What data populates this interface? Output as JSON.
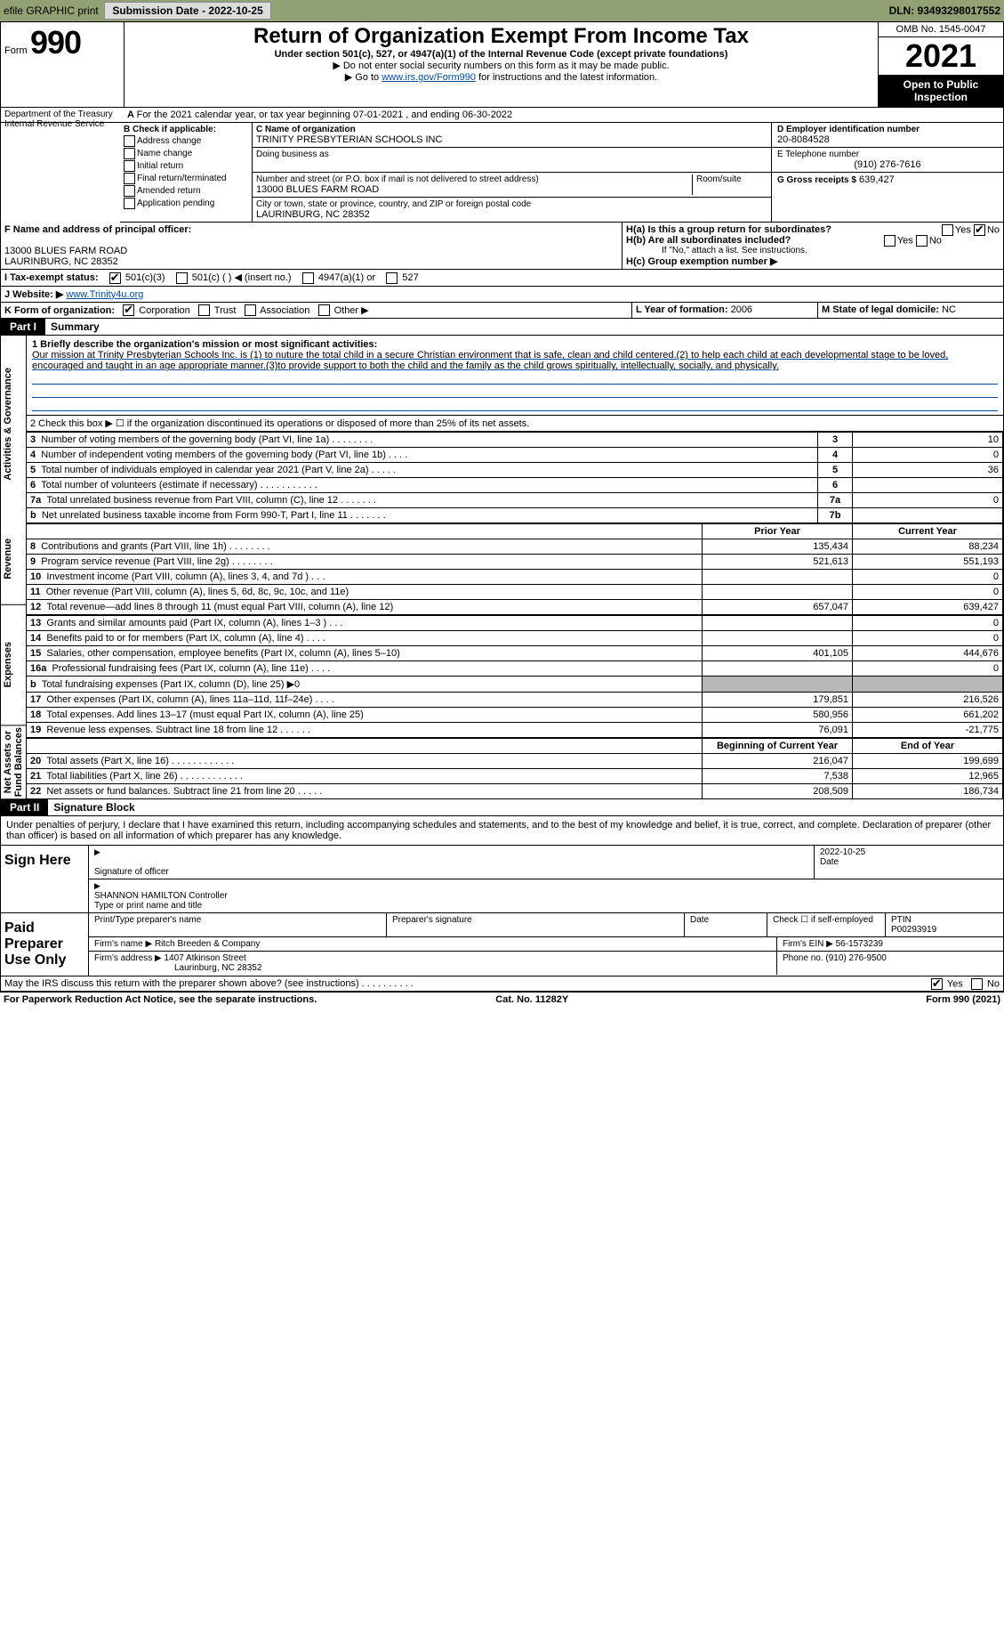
{
  "topbar": {
    "efile": "efile GRAPHIC print",
    "submission_btn": "Submission Date - 2022-10-25",
    "dln": "DLN: 93493298017552"
  },
  "header": {
    "form_word": "Form",
    "form_num": "990",
    "title": "Return of Organization Exempt From Income Tax",
    "subtitle": "Under section 501(c), 527, or 4947(a)(1) of the Internal Revenue Code (except private foundations)",
    "note1": "▶ Do not enter social security numbers on this form as it may be made public.",
    "note2_pre": "▶ Go to ",
    "note2_link": "www.irs.gov/Form990",
    "note2_post": " for instructions and the latest information.",
    "omb": "OMB No. 1545-0047",
    "year": "2021",
    "open": "Open to Public Inspection",
    "dept": "Department of the Treasury Internal Revenue Service"
  },
  "rowA": "For the 2021 calendar year, or tax year beginning 07-01-2021    , and ending 06-30-2022",
  "boxB": {
    "heading": "B Check if applicable:",
    "opts": [
      "Address change",
      "Name change",
      "Initial return",
      "Final return/terminated",
      "Amended return",
      "Application pending"
    ]
  },
  "boxC": {
    "label_name": "C Name of organization",
    "name": "TRINITY PRESBYTERIAN SCHOOLS INC",
    "dba_label": "Doing business as",
    "addr_label": "Number and street (or P.O. box if mail is not delivered to street address)",
    "room_label": "Room/suite",
    "addr": "13000 BLUES FARM ROAD",
    "city_label": "City or town, state or province, country, and ZIP or foreign postal code",
    "city": "LAURINBURG, NC  28352"
  },
  "boxD": {
    "label": "D Employer identification number",
    "value": "20-8084528"
  },
  "boxE": {
    "label": "E Telephone number",
    "value": "(910) 276-7616"
  },
  "boxG": {
    "label": "G Gross receipts $",
    "value": "639,427"
  },
  "boxF": {
    "label": "F  Name and address of principal officer:",
    "line1": "13000 BLUES FARM ROAD",
    "line2": "LAURINBURG, NC  28352"
  },
  "boxH": {
    "a": "H(a)  Is this a group return for subordinates?",
    "b": "H(b)  Are all subordinates included?",
    "b_note": "If \"No,\" attach a list. See instructions.",
    "c": "H(c)  Group exemption number ▶",
    "yes": "Yes",
    "no": "No"
  },
  "rowI": {
    "label": "I   Tax-exempt status:",
    "opts": [
      "501(c)(3)",
      "501(c) (  ) ◀ (insert no.)",
      "4947(a)(1) or",
      "527"
    ]
  },
  "rowJ": {
    "label": "J   Website: ▶",
    "value": "www.Trinity4u.org"
  },
  "rowK": {
    "label": "K Form of organization:",
    "opts": [
      "Corporation",
      "Trust",
      "Association",
      "Other ▶"
    ]
  },
  "rowL": {
    "label": "L Year of formation:",
    "value": "2006"
  },
  "rowM": {
    "label": "M State of legal domicile:",
    "value": "NC"
  },
  "part1": {
    "tab": "Part I",
    "title": "Summary",
    "line1_label": "1  Briefly describe the organization's mission or most significant activities:",
    "mission": "Our mission at Trinity Presbyterian Schools Inc. is (1) to nuture the total child in a secure Christian environment that is safe, clean and child centered.(2) to help each child at each developmental stage to be loved, encouraged and taught in an age appropriate manner.(3)to provide support to both the child and the family as the child grows spiritually, intellectually, socially, and physically.",
    "line2": "2   Check this box ▶ ☐  if the organization discontinued its operations or disposed of more than 25% of its net assets.",
    "rows_top": [
      {
        "n": "3",
        "t": "Number of voting members of the governing body (Part VI, line 1a)   .    .    .    .    .    .    .    .",
        "box": "3",
        "v": "10"
      },
      {
        "n": "4",
        "t": "Number of independent voting members of the governing body (Part VI, line 1b)    .    .    .    .",
        "box": "4",
        "v": "0"
      },
      {
        "n": "5",
        "t": "Total number of individuals employed in calendar year 2021 (Part V, line 2a)   .    .    .    .    .",
        "box": "5",
        "v": "36"
      },
      {
        "n": "6",
        "t": "Total number of volunteers (estimate if necessary)    .    .    .    .    .    .    .    .    .    .    .",
        "box": "6",
        "v": ""
      },
      {
        "n": "7a",
        "t": "Total unrelated business revenue from Part VIII, column (C), line 12   .    .    .    .    .    .    .",
        "box": "7a",
        "v": "0"
      },
      {
        "n": "b",
        "t": "Net unrelated business taxable income from Form 990-T, Part I, line 11   .    .    .    .    .    .    .",
        "box": "7b",
        "v": ""
      }
    ],
    "col_prior": "Prior Year",
    "col_current": "Current Year",
    "revenue_rows": [
      {
        "n": "8",
        "t": "Contributions and grants (Part VIII, line 1h)    .    .    .    .    .    .    .    .",
        "p": "135,434",
        "c": "88,234"
      },
      {
        "n": "9",
        "t": "Program service revenue (Part VIII, line 2g)    .    .    .    .    .    .    .    .",
        "p": "521,613",
        "c": "551,193"
      },
      {
        "n": "10",
        "t": "Investment income (Part VIII, column (A), lines 3, 4, and 7d )    .    .    .",
        "p": "",
        "c": "0"
      },
      {
        "n": "11",
        "t": "Other revenue (Part VIII, column (A), lines 5, 6d, 8c, 9c, 10c, and 11e)",
        "p": "",
        "c": "0"
      },
      {
        "n": "12",
        "t": "Total revenue—add lines 8 through 11 (must equal Part VIII, column (A), line 12)",
        "p": "657,047",
        "c": "639,427"
      }
    ],
    "expense_rows": [
      {
        "n": "13",
        "t": "Grants and similar amounts paid (Part IX, column (A), lines 1–3 )   .    .    .",
        "p": "",
        "c": "0"
      },
      {
        "n": "14",
        "t": "Benefits paid to or for members (Part IX, column (A), line 4)   .    .    .    .",
        "p": "",
        "c": "0"
      },
      {
        "n": "15",
        "t": "Salaries, other compensation, employee benefits (Part IX, column (A), lines 5–10)",
        "p": "401,105",
        "c": "444,676"
      },
      {
        "n": "16a",
        "t": "Professional fundraising fees (Part IX, column (A), line 11e)   .    .    .    .",
        "p": "",
        "c": "0"
      },
      {
        "n": "b",
        "t": "Total fundraising expenses (Part IX, column (D), line 25) ▶0",
        "p": "SHADE",
        "c": "SHADE"
      },
      {
        "n": "17",
        "t": "Other expenses (Part IX, column (A), lines 11a–11d, 11f–24e)    .    .    .    .",
        "p": "179,851",
        "c": "216,526"
      },
      {
        "n": "18",
        "t": "Total expenses. Add lines 13–17 (must equal Part IX, column (A), line 25)",
        "p": "580,956",
        "c": "661,202"
      },
      {
        "n": "19",
        "t": "Revenue less expenses. Subtract line 18 from line 12   .    .    .    .    .    .",
        "p": "76,091",
        "c": "-21,775"
      }
    ],
    "col_begin": "Beginning of Current Year",
    "col_end": "End of Year",
    "net_rows": [
      {
        "n": "20",
        "t": "Total assets (Part X, line 16)   .    .    .    .    .    .    .    .    .    .    .    .",
        "p": "216,047",
        "c": "199,699"
      },
      {
        "n": "21",
        "t": "Total liabilities (Part X, line 26)   .    .    .    .    .    .    .    .    .    .    .    .",
        "p": "7,538",
        "c": "12,965"
      },
      {
        "n": "22",
        "t": "Net assets or fund balances. Subtract line 21 from line 20   .    .    .    .    .",
        "p": "208,509",
        "c": "186,734"
      }
    ],
    "side_labels": {
      "gov": "Activities & Governance",
      "rev": "Revenue",
      "exp": "Expenses",
      "net": "Net Assets or Fund Balances"
    }
  },
  "part2": {
    "tab": "Part II",
    "title": "Signature Block",
    "intro": "Under penalties of perjury, I declare that I have examined this return, including accompanying schedules and statements, and to the best of my knowledge and belief, it is true, correct, and complete. Declaration of preparer (other than officer) is based on all information of which preparer has any knowledge.",
    "sign_here": "Sign Here",
    "sig_officer": "Signature of officer",
    "sig_date": "Date",
    "sig_date_val": "2022-10-25",
    "officer_name": "SHANNON HAMILTON  Controller",
    "type_name": "Type or print name and title",
    "paid": "Paid Preparer Use Only",
    "prep_name_label": "Print/Type preparer's name",
    "prep_sig_label": "Preparer's signature",
    "date_label": "Date",
    "check_self": "Check ☐ if self-employed",
    "ptin_label": "PTIN",
    "ptin": "P00293919",
    "firm_name_label": "Firm's name    ▶",
    "firm_name": "Ritch Breeden & Company",
    "firm_ein_label": "Firm's EIN ▶",
    "firm_ein": "56-1573239",
    "firm_addr_label": "Firm's address ▶",
    "firm_addr1": "1407 Atkinson Street",
    "firm_addr2": "Laurinburg, NC  28352",
    "phone_label": "Phone no.",
    "phone": "(910) 276-9500",
    "discuss": "May the IRS discuss this return with the preparer shown above? (see instructions)    .    .    .    .    .    .    .    .    .    .",
    "yes": "Yes",
    "no": "No"
  },
  "footer": {
    "left": "For Paperwork Reduction Act Notice, see the separate instructions.",
    "mid": "Cat. No. 11282Y",
    "right": "Form 990 (2021)"
  },
  "colors": {
    "topbar_bg": "#92a274",
    "link": "#004b9b",
    "shade": "#b8b8b8"
  }
}
